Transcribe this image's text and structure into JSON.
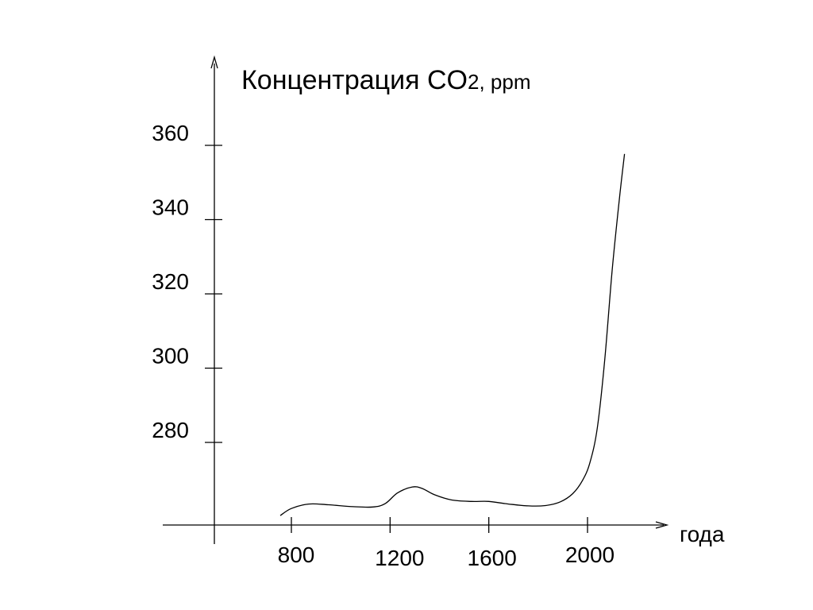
{
  "chart_data": {
    "type": "line",
    "title": "Концентрация CO",
    "title_subscript": "2",
    "title_unit": ", ppm",
    "xlabel": "года",
    "ylabel": "",
    "x_ticks": [
      800,
      1200,
      1600,
      2000
    ],
    "y_ticks": [
      280,
      300,
      320,
      340,
      360
    ],
    "x_tick_labels": [
      "800",
      "1200",
      "1600",
      "2000"
    ],
    "y_tick_labels": [
      "280",
      "300",
      "320",
      "340",
      "360"
    ],
    "grid": false,
    "legend": "none",
    "series": [
      {
        "x": [
          755,
          800,
          870,
          950,
          1050,
          1130,
          1180,
          1230,
          1290,
          1330,
          1380,
          1450,
          1530,
          1600,
          1680,
          1760,
          1830,
          1890,
          1940,
          1980,
          2010,
          2040,
          2070,
          2100,
          2130,
          2150
        ],
        "values": [
          260.3,
          262.2,
          263.4,
          263.2,
          262.7,
          262.6,
          263.5,
          266.4,
          268.0,
          267.6,
          265.9,
          264.5,
          264.1,
          264.1,
          263.4,
          262.9,
          263.0,
          264.0,
          266.2,
          269.8,
          274.6,
          284.0,
          302.5,
          326.5,
          346.1,
          357.7
        ]
      }
    ]
  }
}
